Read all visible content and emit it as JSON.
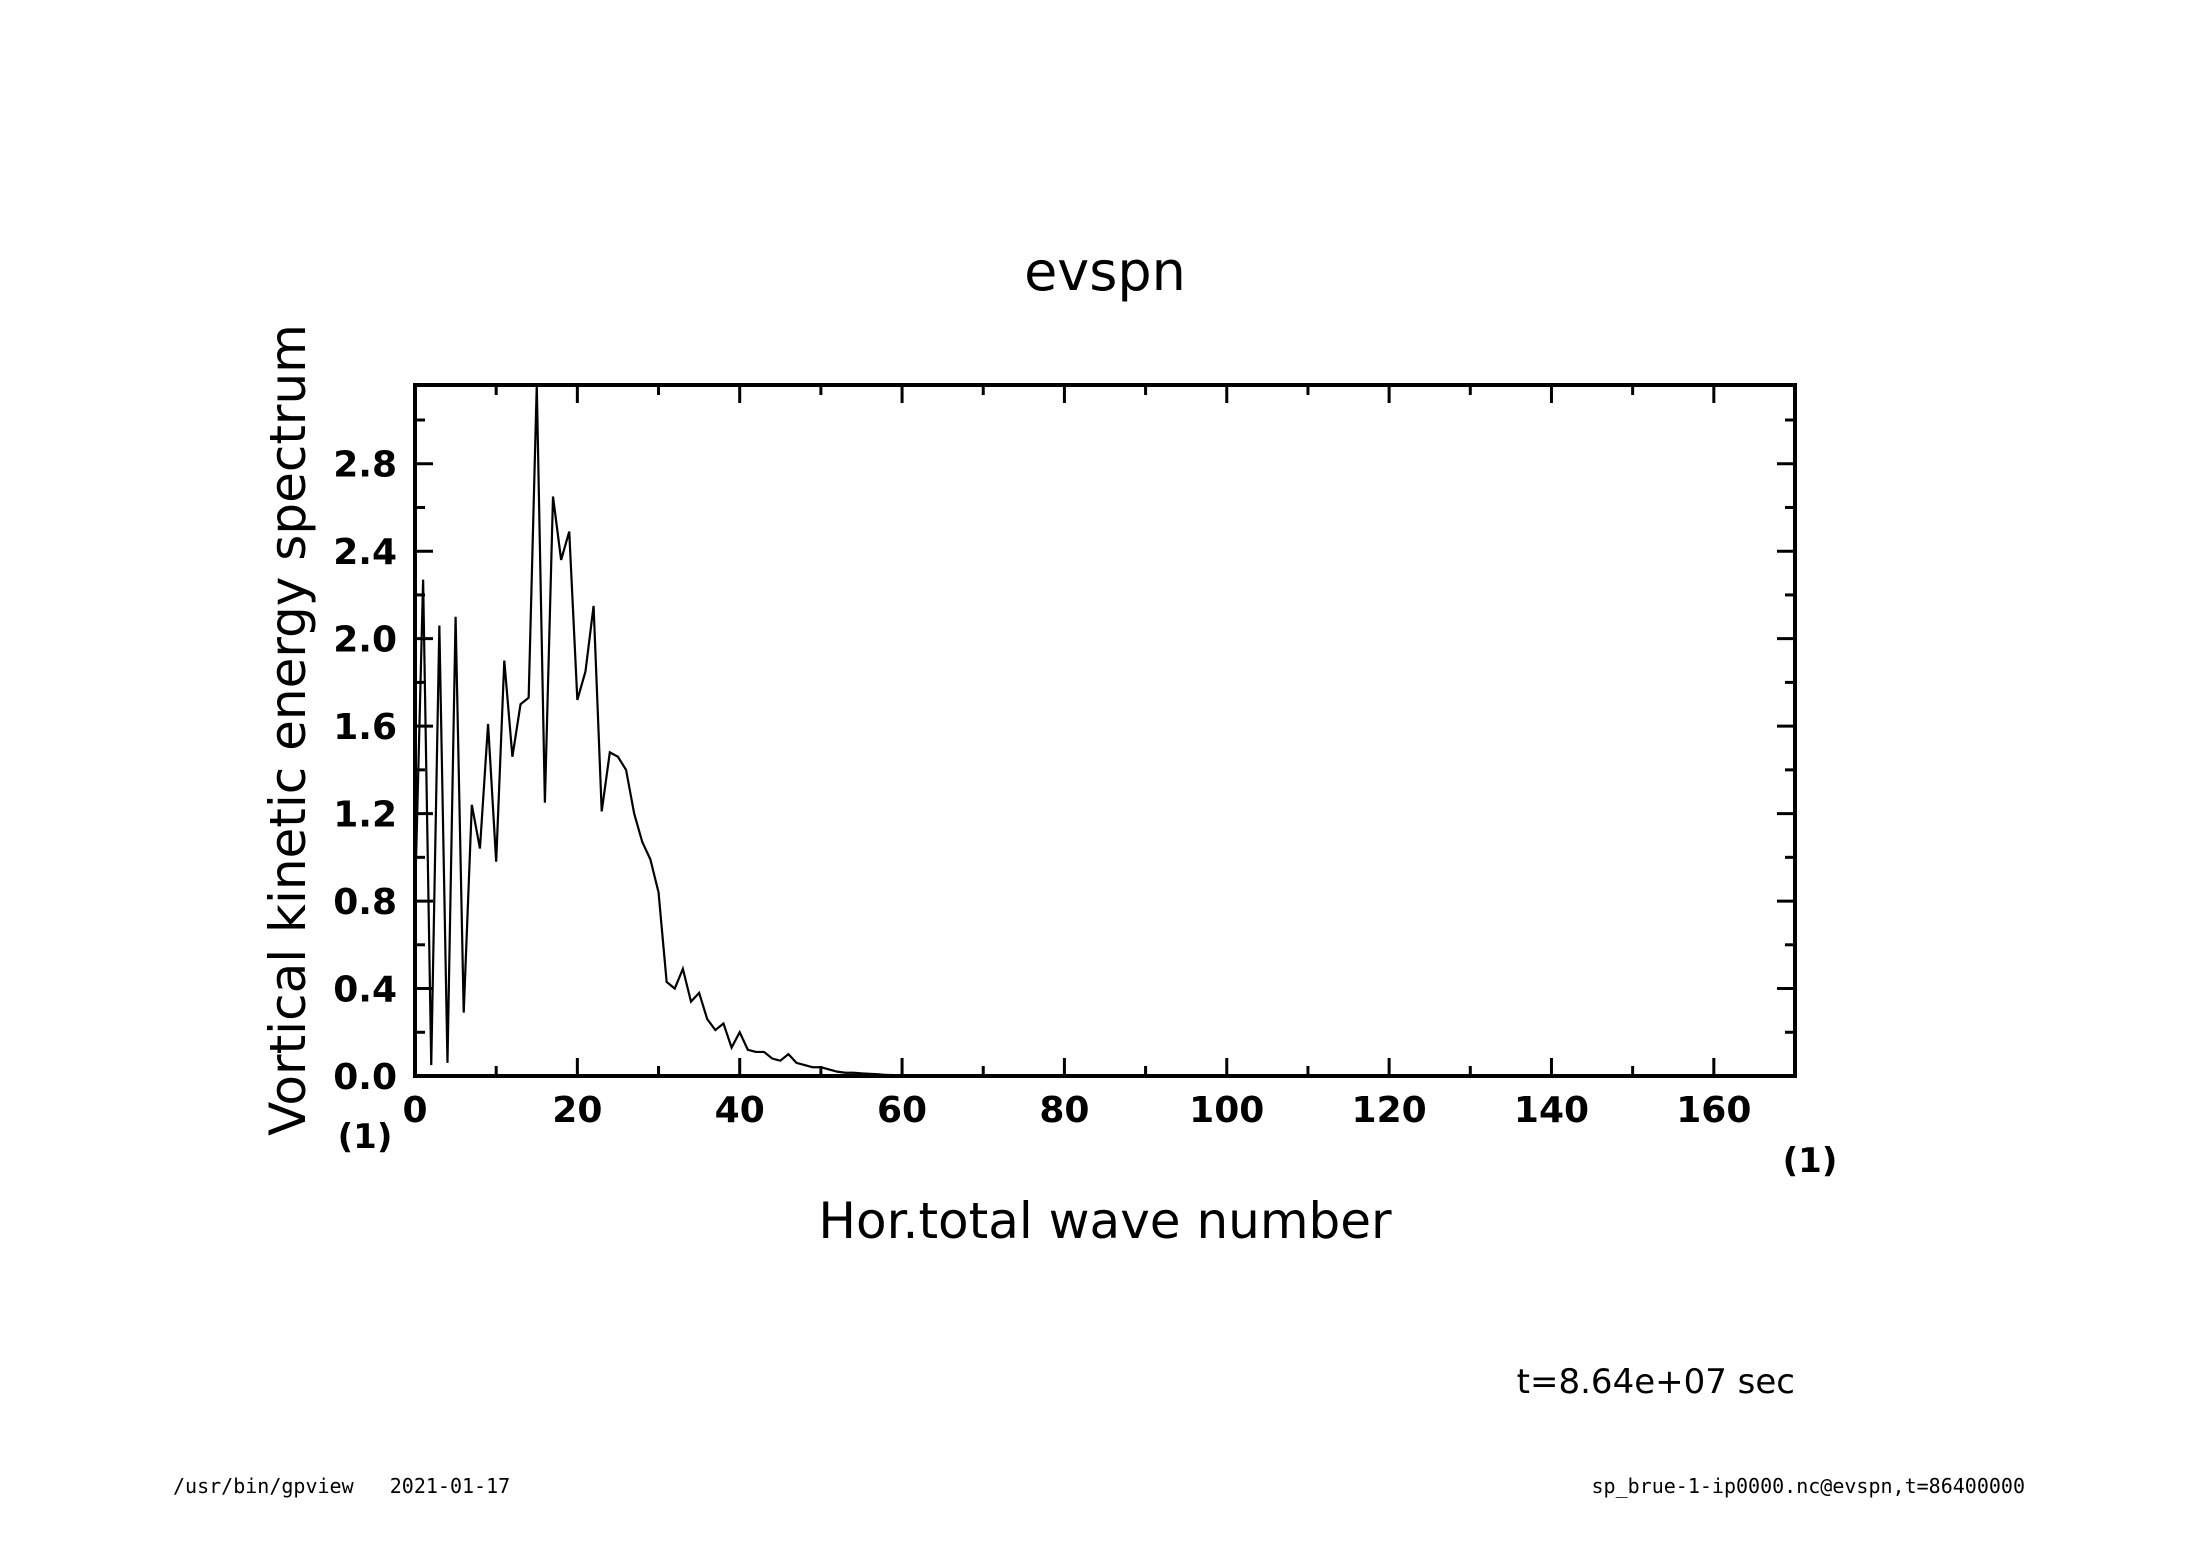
{
  "chart_data": {
    "type": "line",
    "title": "evspn",
    "xlabel": "Hor.total wave number",
    "ylabel": "Vortical kinetic energy spectrum",
    "x_unit": "(1)",
    "y_unit": "(1)",
    "xlim": [
      0,
      170
    ],
    "ylim": [
      0,
      3.16
    ],
    "x_ticks": [
      "0",
      "20",
      "40",
      "60",
      "80",
      "100",
      "120",
      "140",
      "160"
    ],
    "y_ticks": [
      "0.0",
      "0.4",
      "0.8",
      "1.2",
      "1.6",
      "2.0",
      "2.4",
      "2.8"
    ],
    "grid": false,
    "series": [
      {
        "color": "#000000",
        "x": [
          0,
          1,
          2,
          3,
          4,
          5,
          6,
          7,
          8,
          9,
          10,
          11,
          12,
          13,
          14,
          15,
          16,
          17,
          18,
          19,
          20,
          21,
          22,
          23,
          24,
          25,
          26,
          27,
          28,
          29,
          30,
          31,
          32,
          33,
          34,
          35,
          36,
          37,
          38,
          39,
          40,
          41,
          42,
          43,
          44,
          45,
          46,
          47,
          48,
          49,
          50,
          51,
          52,
          53,
          54,
          55,
          56,
          57,
          58,
          59,
          60,
          62,
          64,
          66,
          70,
          80,
          100,
          120,
          140,
          160,
          170
        ],
        "y": [
          0.8,
          2.27,
          0.05,
          2.06,
          0.06,
          2.1,
          0.29,
          1.24,
          1.04,
          1.61,
          0.98,
          1.9,
          1.46,
          1.7,
          1.73,
          3.16,
          1.25,
          2.65,
          2.36,
          2.49,
          1.72,
          1.85,
          2.15,
          1.21,
          1.48,
          1.46,
          1.4,
          1.2,
          1.07,
          0.99,
          0.84,
          0.43,
          0.4,
          0.49,
          0.34,
          0.38,
          0.26,
          0.21,
          0.24,
          0.13,
          0.2,
          0.12,
          0.11,
          0.11,
          0.08,
          0.07,
          0.1,
          0.06,
          0.05,
          0.04,
          0.04,
          0.03,
          0.02,
          0.015,
          0.015,
          0.012,
          0.01,
          0.008,
          0.005,
          0.004,
          0.003,
          0.002,
          0.001,
          0.001,
          0.0,
          0.0,
          0.0,
          0.0,
          0.0,
          0.0,
          0.0
        ]
      }
    ]
  },
  "annotations": {
    "time_label": "t=8.64e+07 sec",
    "footer_left": "/usr/bin/gpview   2021-01-17",
    "footer_right": "sp_brue-1-ip0000.nc@evspn,t=86400000"
  }
}
